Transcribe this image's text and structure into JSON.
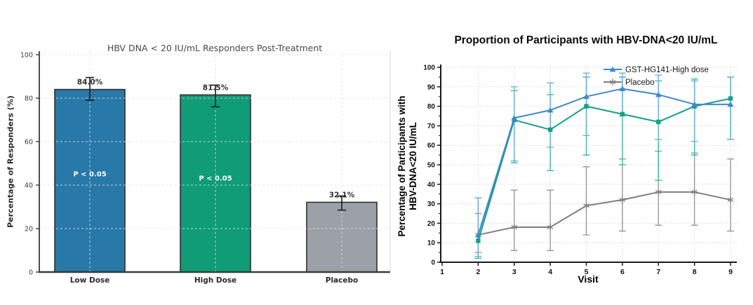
{
  "chart_data": [
    {
      "id": "responders-bar-chart",
      "type": "bar",
      "title": "HBV DNA < 20 IU/mL Responders Post-Treatment",
      "ylabel": "Percentage of Responders (%)",
      "xlabel": "",
      "categories": [
        "Low Dose",
        "High Dose",
        "Placebo"
      ],
      "values": [
        84.0,
        81.5,
        32.1
      ],
      "value_labels": [
        "84.0%",
        "81.5%",
        "32.1%"
      ],
      "error_low": [
        79.0,
        76.0,
        28.5
      ],
      "error_high": [
        89.5,
        86.0,
        35.0
      ],
      "annotations": [
        {
          "bar_index": 0,
          "text": "P < 0.05",
          "at_y": 45
        },
        {
          "bar_index": 1,
          "text": "P < 0.05",
          "at_y": 43
        }
      ],
      "bar_colors": [
        "#2878a8",
        "#0f9c76",
        "#9ba1a6"
      ],
      "ylim": [
        0,
        100
      ],
      "y_ticks": [
        0,
        20,
        40,
        60,
        80,
        100
      ],
      "grid": true,
      "legend_position": "none"
    },
    {
      "id": "proportion-line-chart",
      "type": "line",
      "title": "Proportion of Participants with HBV-DNA<20 IU/mL",
      "ylabel": "Percentage of Participants with HBV-DNA<20 IU/mL",
      "ylabel_line1": "Percentage of Participants with",
      "ylabel_line2": "HBV-DNA<20 IU/mL",
      "xlabel": "Visit",
      "xlim": [
        1,
        9
      ],
      "x_ticks": [
        1,
        2,
        3,
        4,
        5,
        6,
        7,
        8,
        9
      ],
      "ylim": [
        0,
        100
      ],
      "y_ticks": [
        0,
        10,
        20,
        30,
        40,
        50,
        60,
        70,
        80,
        90,
        100
      ],
      "grid": true,
      "legend_position": "upper right",
      "x": [
        2,
        3,
        4,
        5,
        6,
        7,
        8,
        9
      ],
      "series": [
        {
          "name": "Placebo",
          "in_legend": true,
          "marker": "star",
          "color": "#7f7f7f",
          "err_color": "#999999",
          "values": [
            14,
            18,
            18,
            29,
            32,
            36,
            36,
            32
          ],
          "err_low": [
            5,
            6,
            6,
            14,
            16,
            19,
            19,
            16
          ],
          "err_high": [
            25,
            37,
            37,
            49,
            53,
            57,
            56,
            53
          ]
        },
        {
          "name": "",
          "in_legend": false,
          "marker": "square",
          "color": "#16a085",
          "err_color": "#3cb8a4",
          "values": [
            11,
            73,
            68,
            80,
            76,
            72,
            80,
            84
          ],
          "err_low": [
            2,
            51,
            47,
            55,
            50,
            42,
            55,
            63
          ],
          "err_high": [
            33,
            88,
            86,
            95,
            95,
            93,
            94,
            95
          ]
        },
        {
          "name": "GST-HG141-High dose",
          "in_legend": true,
          "marker": "triangle",
          "color": "#4288c8",
          "err_color": "#6fb0dc",
          "values": [
            14,
            74,
            78,
            85,
            89,
            86,
            81,
            81
          ],
          "err_low": [
            3,
            52,
            59,
            65,
            75,
            63,
            62,
            63
          ],
          "err_high": [
            33,
            90,
            92,
            97,
            97,
            96,
            93,
            95
          ]
        }
      ]
    }
  ]
}
